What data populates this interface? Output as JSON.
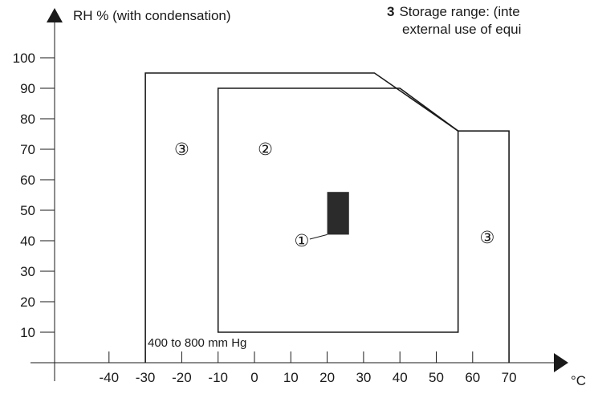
{
  "note": {
    "number": "3",
    "line1": "Storage range: (inte",
    "line2": "external use of equi"
  },
  "chart_data": {
    "type": "region-diagram",
    "ylabel": "RH % (with condensation)",
    "xlabel": "°C",
    "xlim": [
      -50,
      80
    ],
    "ylim": [
      0,
      105
    ],
    "x_ticks": [
      -40,
      -30,
      -20,
      -10,
      0,
      10,
      20,
      30,
      40,
      50,
      60,
      70
    ],
    "y_ticks": [
      10,
      20,
      30,
      40,
      50,
      60,
      70,
      80,
      90,
      100
    ],
    "pressure_note": "400 to 800 mm Hg",
    "regions": [
      {
        "label": "③",
        "points": [
          [
            -30,
            0
          ],
          [
            -30,
            95
          ],
          [
            33,
            95
          ],
          [
            56,
            76
          ],
          [
            70,
            76
          ],
          [
            70,
            0
          ]
        ],
        "label_positions": [
          [
            -20,
            70
          ],
          [
            64,
            41
          ]
        ]
      },
      {
        "label": "②",
        "points": [
          [
            -10,
            10
          ],
          [
            -10,
            90
          ],
          [
            40,
            90
          ],
          [
            56,
            76
          ],
          [
            56,
            10
          ]
        ],
        "label_positions": [
          [
            3,
            70
          ]
        ]
      },
      {
        "label": "①",
        "filled_rect": {
          "x": [
            20,
            26
          ],
          "y": [
            42,
            56
          ]
        },
        "label_position": [
          13,
          40
        ],
        "leader_to": [
          20,
          42
        ]
      }
    ]
  }
}
